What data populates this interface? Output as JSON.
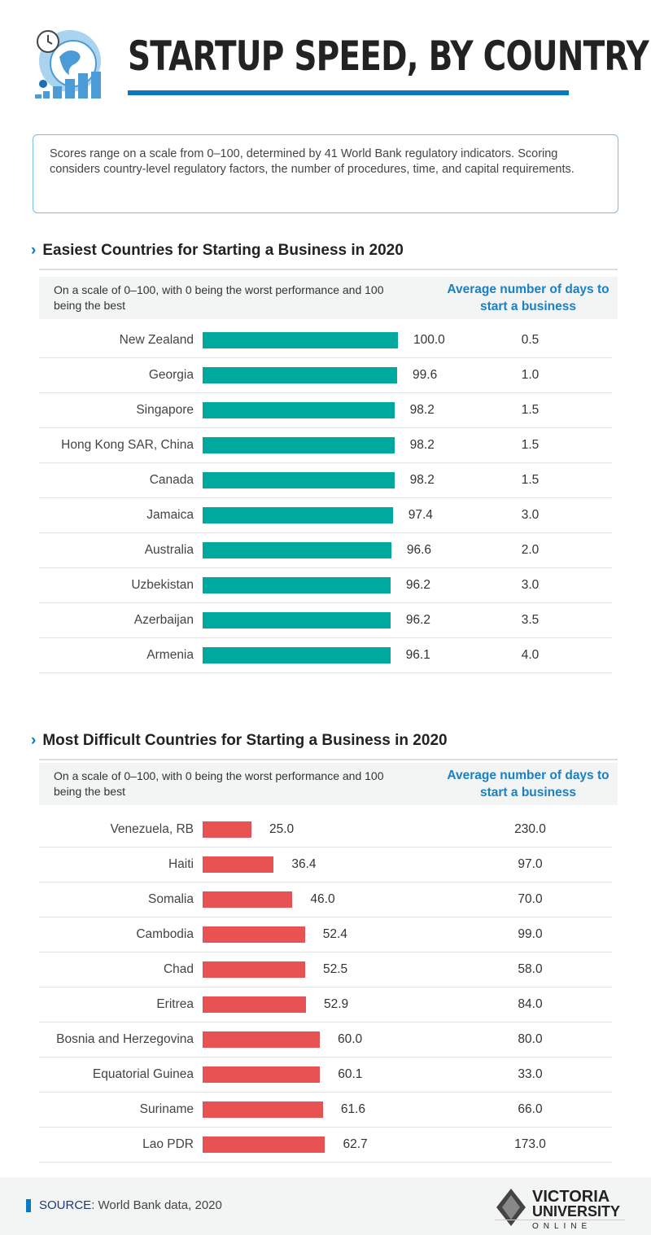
{
  "title": "STARTUP SPEED, BY COUNTRY",
  "intro": "Scores range on a scale from 0–100, determined by 41 World Bank regulatory indicators. Scoring considers country-level regulatory factors, the number of procedures, time, and capital requirements.",
  "colors": {
    "accent": "#0a7abf",
    "easiest_bar": "#00a99d",
    "difficult_bar": "#e85252",
    "days_header": "#1a80c4"
  },
  "chart_data": [
    {
      "type": "bar",
      "orientation": "horizontal",
      "title": "Easiest Countries for Starting a Business in 2020",
      "note": "On a scale of 0–100, with 0 being the worst performance and 100 being the best",
      "days_header": "Average number of days to start a business",
      "xlim": [
        0,
        100
      ],
      "categories": [
        "New Zealand",
        "Georgia",
        "Singapore",
        "Hong Kong SAR, China",
        "Canada",
        "Jamaica",
        "Australia",
        "Uzbekistan",
        "Azerbaijan",
        "Armenia"
      ],
      "values": [
        "100.0",
        "99.6",
        "98.2",
        "98.2",
        "98.2",
        "97.4",
        "96.6",
        "96.2",
        "96.2",
        "96.1"
      ],
      "days": [
        "0.5",
        "1.0",
        "1.5",
        "1.5",
        "1.5",
        "3.0",
        "2.0",
        "3.0",
        "3.5",
        "4.0"
      ]
    },
    {
      "type": "bar",
      "orientation": "horizontal",
      "title": "Most Difficult Countries for Starting a Business in 2020",
      "note": "On a scale of 0–100, with 0 being the worst performance and 100 being the best",
      "days_header": "Average number of days to start a business",
      "xlim": [
        0,
        100
      ],
      "categories": [
        "Venezuela, RB",
        "Haiti",
        "Somalia",
        "Cambodia",
        "Chad",
        "Eritrea",
        "Bosnia and Herzegovina",
        "Equatorial Guinea",
        "Suriname",
        "Lao PDR"
      ],
      "values": [
        "25.0",
        "36.4",
        "46.0",
        "52.4",
        "52.5",
        "52.9",
        "60.0",
        "60.1",
        "61.6",
        "62.7"
      ],
      "days": [
        "230.0",
        "97.0",
        "70.0",
        "99.0",
        "58.0",
        "84.0",
        "80.0",
        "33.0",
        "66.0",
        "173.0"
      ]
    }
  ],
  "footer": {
    "source_label": "SOURCE",
    "source_text": ": World Bank data, 2020",
    "logo": "VICTORIA UNIVERSITY ONLINE"
  }
}
